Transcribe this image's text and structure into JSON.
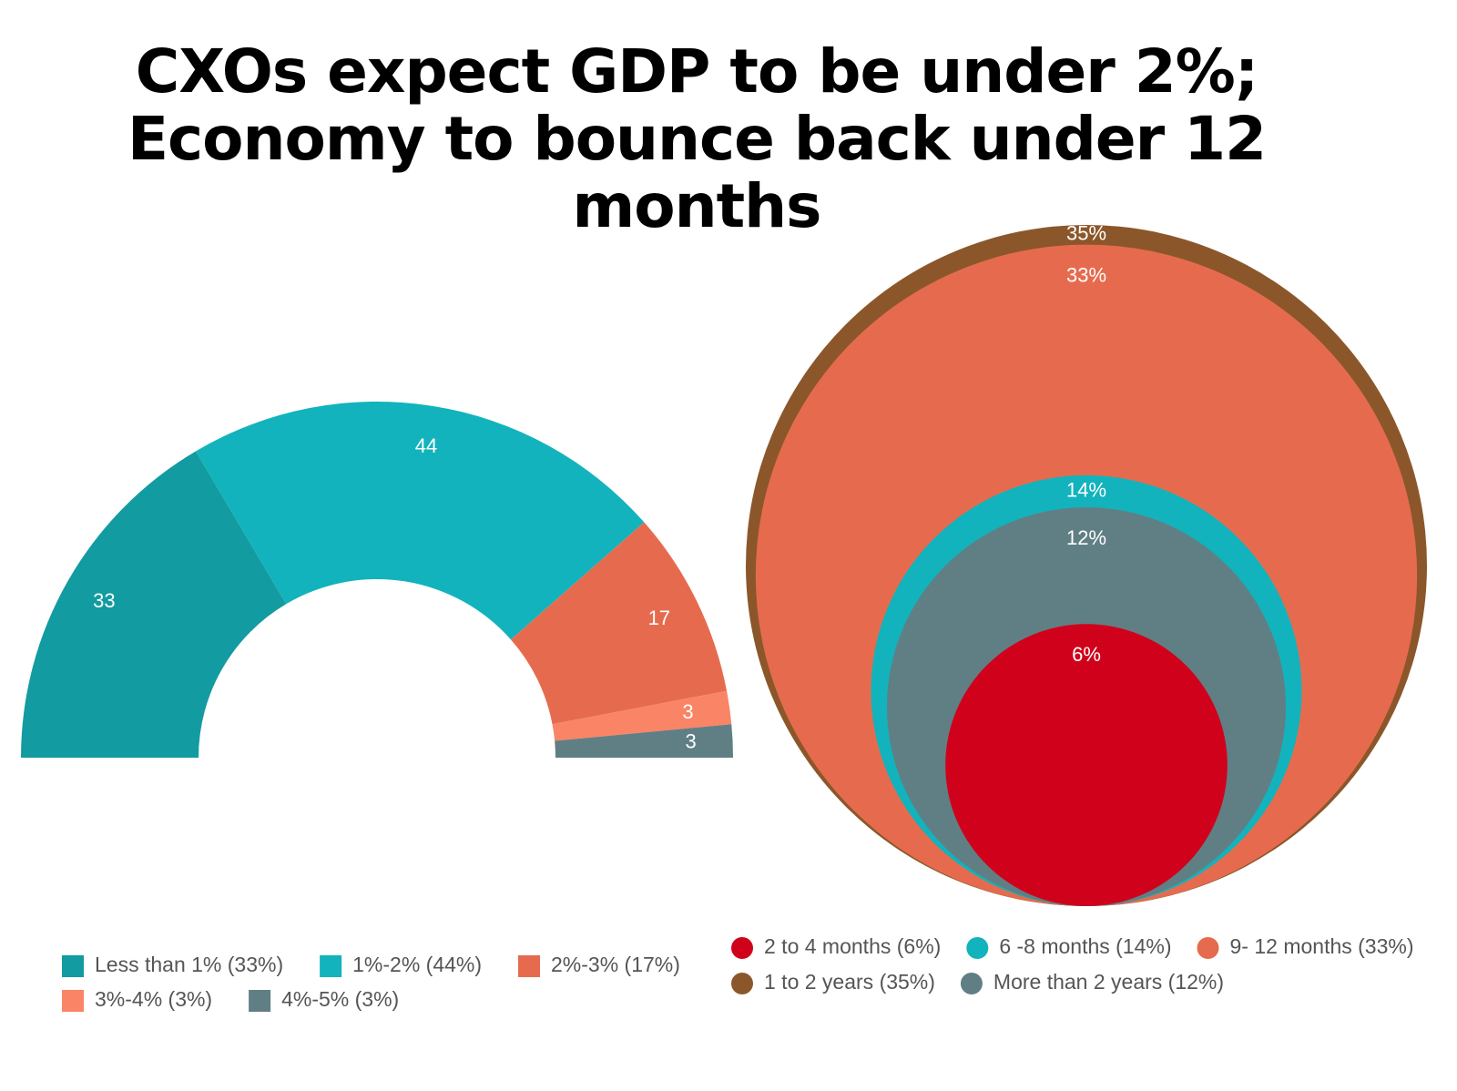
{
  "title": "CXOs expect GDP to be under 2%; Economy to bounce back under 12 months",
  "chart_data": [
    {
      "type": "half-donut",
      "categories": [
        "Less than 1% (33%)",
        "1%-2% (44%)",
        "2%-3% (17%)",
        "3%-4% (3%)",
        "4%-5% (3%)"
      ],
      "values": [
        33,
        44,
        17,
        3,
        3
      ],
      "colors": [
        "#129ba0",
        "#12b3bc",
        "#e66b4e",
        "#fa8466",
        "#607f84"
      ]
    },
    {
      "type": "nested-circles",
      "categories": [
        "2 to 4 months (6%)",
        "6 -8 months (14%)",
        "9- 12 months (33%)",
        "1 to 2 years (35%)",
        "More than 2 years (12%)"
      ],
      "values": [
        6,
        14,
        33,
        35,
        12
      ],
      "value_labels": [
        "6%",
        "14%",
        "33%",
        "35%",
        "12%"
      ],
      "colors": [
        "#d0021b",
        "#12b3bc",
        "#e66b4e",
        "#8b572a",
        "#607f84"
      ]
    }
  ]
}
